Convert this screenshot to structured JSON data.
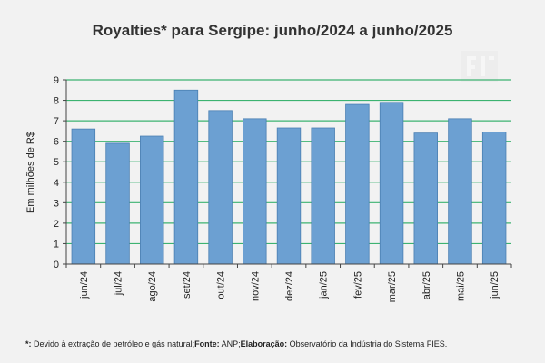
{
  "chart_data": {
    "type": "bar",
    "title": "Royalties* para Sergipe: junho/2024 a junho/2025",
    "xlabel": "",
    "ylabel": "Em milhões de R$",
    "ylim": [
      0,
      9
    ],
    "yticks": [
      0,
      1,
      2,
      3,
      4,
      5,
      6,
      7,
      8,
      9
    ],
    "grid": true,
    "legend": "none",
    "categories": [
      "jun/24",
      "jul/24",
      "ago/24",
      "set/24",
      "out/24",
      "nov/24",
      "dez/24",
      "jan/25",
      "fev/25",
      "mar/25",
      "abr/25",
      "mai/25",
      "jun/25"
    ],
    "values": [
      6.6,
      5.9,
      6.25,
      8.5,
      7.5,
      7.1,
      6.65,
      6.65,
      7.8,
      7.9,
      6.4,
      7.1,
      6.45
    ],
    "bar_color": "#6ca0d2",
    "bar_edge_color": "#4a7fb2",
    "grid_color": "#3cb371"
  },
  "footnote": {
    "marker": "*:",
    "text1": " Devido à extração de petróleo e gás natural;",
    "source_label": "Fonte:",
    "source_text": " ANP;",
    "elab_label": "Elaboração:",
    "elab_text": " Observatório da Indústria do Sistema FIES."
  }
}
